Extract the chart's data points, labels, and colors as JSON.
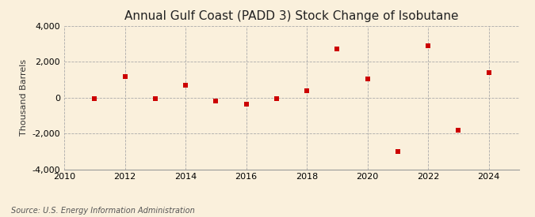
{
  "title": "Annual Gulf Coast (PADD 3) Stock Change of Isobutane",
  "ylabel": "Thousand Barrels",
  "source": "Source: U.S. Energy Information Administration",
  "years": [
    2011,
    2012,
    2013,
    2014,
    2015,
    2016,
    2017,
    2018,
    2019,
    2020,
    2021,
    2022,
    2023,
    2024
  ],
  "values": [
    -50,
    1200,
    -60,
    700,
    -200,
    -350,
    -50,
    400,
    2700,
    1050,
    -3000,
    2900,
    -1800,
    1400
  ],
  "xlim": [
    2010,
    2025
  ],
  "ylim": [
    -4000,
    4000
  ],
  "yticks": [
    -4000,
    -2000,
    0,
    2000,
    4000
  ],
  "xticks": [
    2010,
    2012,
    2014,
    2016,
    2018,
    2020,
    2022,
    2024
  ],
  "marker_color": "#CC0000",
  "marker": "s",
  "marker_size": 4,
  "bg_color": "#FAF0DC",
  "grid_color": "#AAAAAA",
  "title_fontsize": 11,
  "label_fontsize": 8,
  "tick_fontsize": 8,
  "source_fontsize": 7
}
